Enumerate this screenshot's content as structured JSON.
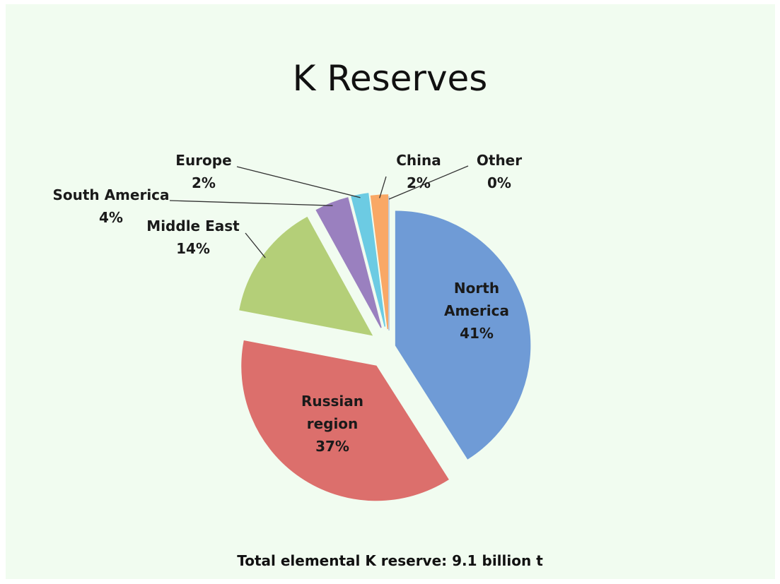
{
  "chart_data": {
    "type": "pie",
    "title": "K Reserves",
    "categories": [
      "North America",
      "Russian region",
      "Middle East",
      "South America",
      "Europe",
      "China",
      "Other"
    ],
    "values": [
      41,
      37,
      14,
      4,
      2,
      2,
      0
    ],
    "value_labels": [
      "41%",
      "37%",
      "14%",
      "4%",
      "2%",
      "2%",
      "0%"
    ],
    "colors": [
      "#6f9bd6",
      "#dc6f6c",
      "#b4cf78",
      "#9a80bf",
      "#6ccbe3",
      "#f9a866",
      "#b0c4de"
    ],
    "annotation": "Total elemental K reserve: 9.1 billion t"
  }
}
